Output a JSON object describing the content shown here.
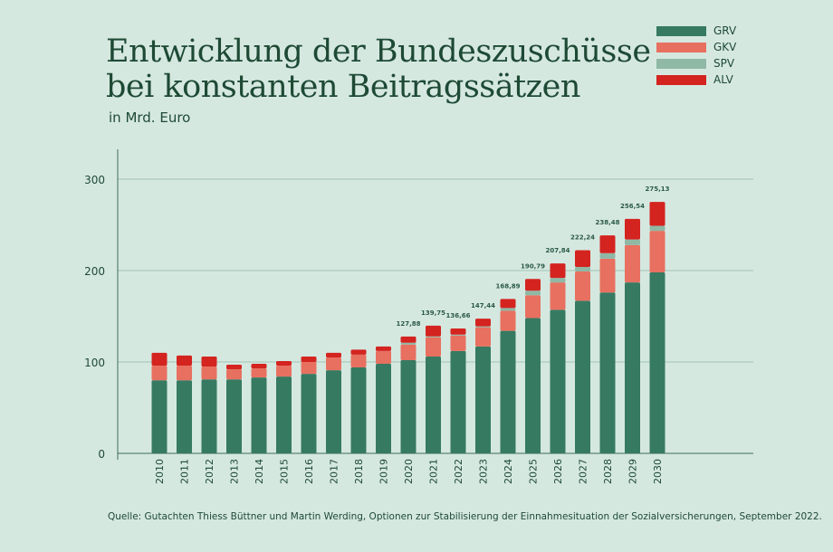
{
  "chart_data": {
    "type": "bar",
    "stacked": true,
    "title": "Entwicklung der Bundeszuschüsse bei konstanten Beitragssätzen",
    "title_lines": [
      "Entwicklung der Bundeszuschüsse",
      "bei konstanten Beitragssätzen"
    ],
    "subtitle": "in Mrd. Euro",
    "source": "Quelle: Gutachten Thiess Büttner und Martin Werding, Optionen zur Stabilisierung der Einnahmesituation der Sozialversicherungen, September 2022.",
    "categories": [
      "2010",
      "2011",
      "2012",
      "2013",
      "2014",
      "2015",
      "2016",
      "2017",
      "2018",
      "2019",
      "2020",
      "2021",
      "2022",
      "2023",
      "2024",
      "2025",
      "2026",
      "2027",
      "2028",
      "2029",
      "2030"
    ],
    "series": [
      {
        "name": "GRV",
        "color": "#367a62",
        "values": [
          80,
          80,
          81,
          81,
          83,
          84,
          87,
          91,
          94,
          98,
          102,
          106,
          112,
          117,
          134,
          148,
          157,
          167,
          176,
          187,
          198
        ]
      },
      {
        "name": "GKV",
        "color": "#e87060",
        "values": [
          16,
          16,
          14,
          11,
          10,
          12,
          13,
          14,
          14,
          14,
          17,
          21,
          17,
          21,
          22,
          25,
          30,
          32,
          37,
          41,
          45.5
        ]
      },
      {
        "name": "SPV",
        "color": "#8fb8a5",
        "values": [
          0,
          0,
          0,
          0,
          0,
          0,
          0,
          0,
          0,
          0,
          2,
          1,
          1,
          1,
          3,
          5,
          5,
          5,
          6,
          6,
          5.5
        ]
      },
      {
        "name": "ALV",
        "color": "#d42420",
        "values": [
          14,
          11,
          11,
          5,
          5,
          5,
          6,
          5,
          5.5,
          5,
          6.88,
          11.75,
          6.66,
          8.44,
          9.89,
          12.79,
          15.84,
          18.24,
          19.48,
          22.54,
          26.13
        ]
      }
    ],
    "totals_labels": [
      null,
      null,
      null,
      null,
      null,
      null,
      null,
      null,
      null,
      null,
      "127,88",
      "139,75",
      "136,66",
      "147,44",
      "168,89",
      "190,79",
      "207,84",
      "222,24",
      "238,48",
      "256,54",
      "275,13"
    ],
    "totals": [
      null,
      null,
      null,
      null,
      null,
      null,
      null,
      null,
      null,
      null,
      127.88,
      139.75,
      136.66,
      147.44,
      168.89,
      190.79,
      207.84,
      222.24,
      238.48,
      256.54,
      275.13
    ],
    "ylim": [
      0,
      330
    ],
    "yticks": [
      0,
      100,
      200,
      300
    ],
    "xlabel": "",
    "ylabel": "",
    "grid": true,
    "legend_position": "top-right"
  }
}
